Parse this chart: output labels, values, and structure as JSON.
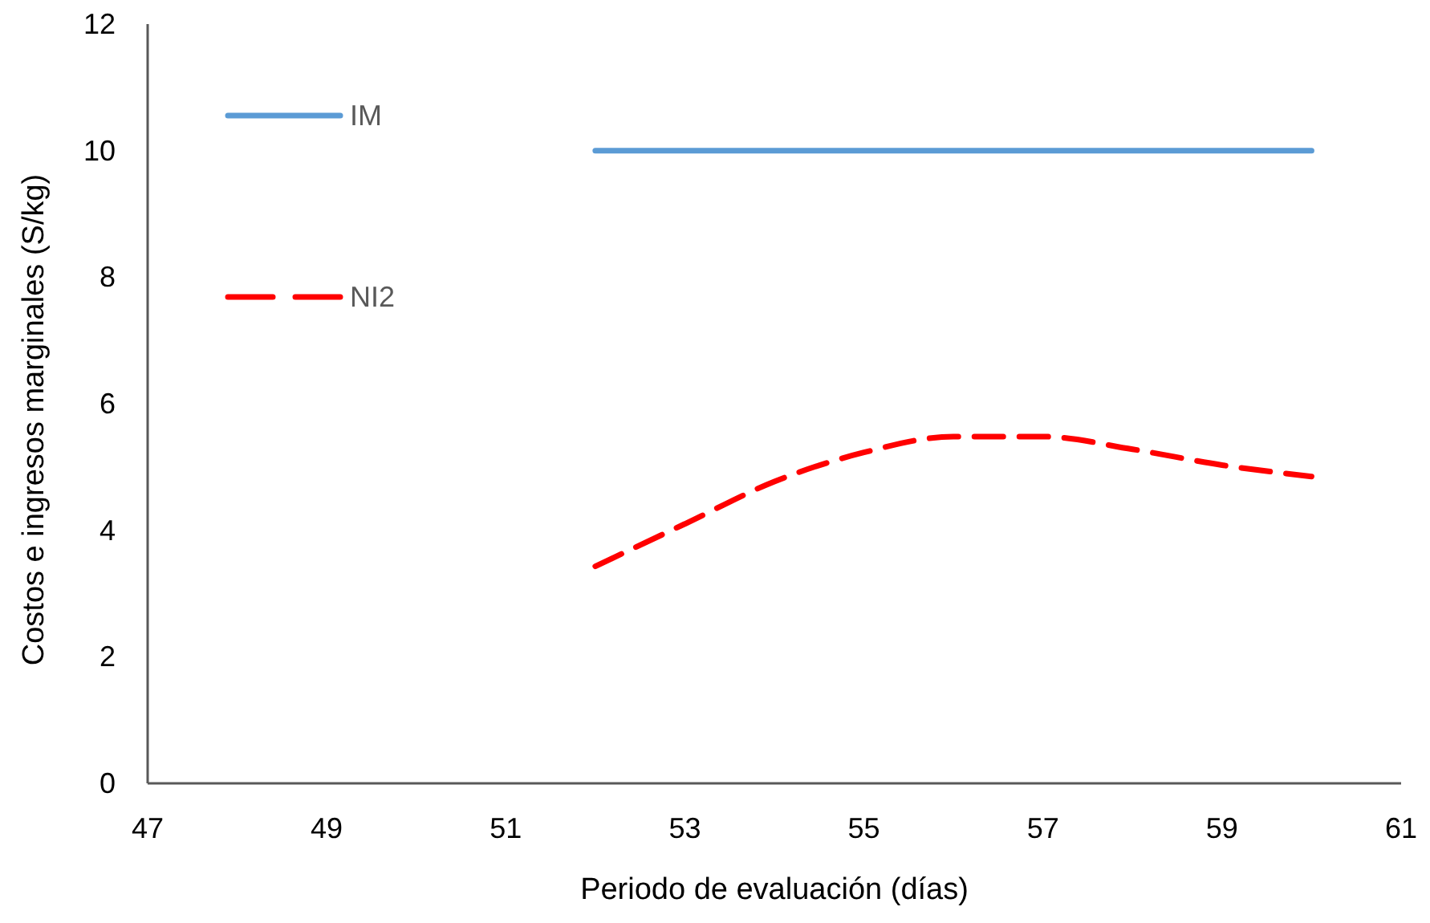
{
  "chart_data": {
    "type": "line",
    "xlabel": "Periodo de evaluación (días)",
    "ylabel": "Costos e ingresos marginales (S/kg)",
    "xlim": [
      47,
      61
    ],
    "xticks": [
      47,
      49,
      51,
      53,
      55,
      57,
      59,
      61
    ],
    "ylim": [
      0,
      12
    ],
    "yticks": [
      0,
      2,
      4,
      6,
      8,
      10,
      12
    ],
    "grid": false,
    "legend": "top left",
    "marker": "none",
    "series": [
      {
        "name": "IM",
        "color": "#5b9bd5",
        "x": [
          52,
          60
        ],
        "values": [
          10,
          10
        ],
        "line_style": "solid"
      },
      {
        "name": "NI2",
        "color": "#ff0000",
        "x": [
          52,
          53,
          54,
          55,
          56,
          57,
          58,
          59,
          60
        ],
        "values": [
          3.43,
          4.1,
          4.77,
          5.23,
          5.48,
          5.48,
          5.28,
          5.03,
          4.85
        ],
        "line_style": "dashed"
      }
    ]
  }
}
